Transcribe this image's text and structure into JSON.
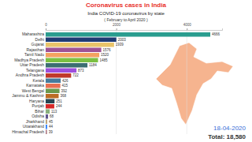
{
  "chart_data": {
    "type": "bar",
    "orientation": "horizontal",
    "title": "Coronavirus cases in India",
    "subtitle": "India COVID-19 coronavirus by state",
    "annotations": [
      "( February to April 2020 )",
      "18-04-2020",
      "Total: 18,580"
    ],
    "categories": [
      "Maharashtra",
      "Delhi",
      "Gujarat",
      "Rajasthan",
      "Tamil Nadu",
      "Madhya Pradesh",
      "Uttar Pradesh",
      "Telangana",
      "Andhra Pradesh",
      "Kerala",
      "Karnataka",
      "West Bengal",
      "Jammu & Kashmir",
      "Haryana",
      "Punjab",
      "Bihar",
      "Odisha",
      "Jharkhand",
      "Uttarakhand",
      "Himachal Pradesh"
    ],
    "values": [
      4666,
      2003,
      1939,
      1576,
      1520,
      1485,
      1184,
      873,
      722,
      426,
      415,
      392,
      368,
      251,
      244,
      113,
      68,
      45,
      44,
      39
    ],
    "colors": [
      "#2a9d8f",
      "#1f3b73",
      "#e9c46a",
      "#a05195",
      "#f4a261",
      "#7bc043",
      "#3c6e71",
      "#9d4edd",
      "#c0392b",
      "#457b9d",
      "#e76f51",
      "#6a994e",
      "#bc6c25",
      "#264653",
      "#d62828",
      "#8ab17d",
      "#5e548e",
      "#bfa57a",
      "#3a86ff",
      "#b5838d"
    ],
    "xlim": [
      0,
      5000
    ],
    "xticks": [
      0,
      2000,
      4000
    ],
    "grid": true,
    "data_labels": true
  }
}
